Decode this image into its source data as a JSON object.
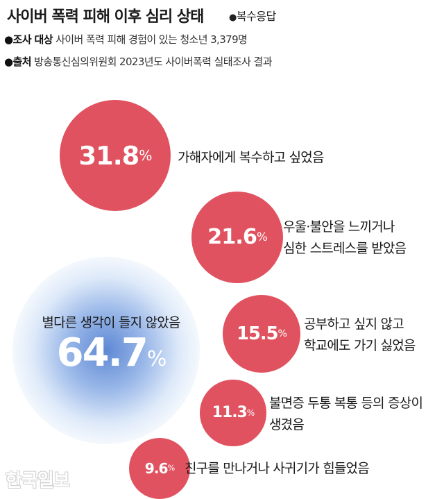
{
  "title": "사이버 폭력 피해 이후 심리 상태",
  "title_note": {
    "bullet": "●",
    "text": "복수응답"
  },
  "meta": {
    "survey_label": "●조사 대상",
    "survey_text": "사이버 폭력 피해 경험이 있는 청소년 3,379명",
    "source_label": "●출처",
    "source_text": "방송통신심의위원회 2023년도 사이버폭력 실태조사 결과"
  },
  "logo_text": "한국일보",
  "chart_data": {
    "type": "bubble",
    "unit": "%",
    "bubble_color": "#e0525f",
    "highlight_color": "#5682d2",
    "items": [
      {
        "label": "가해자에게 복수하고 싶었음",
        "lines": [
          "가해자에게 복수하고 싶었음"
        ],
        "value": 31.8,
        "display": "31.8"
      },
      {
        "label": "우울·불안을 느끼거나 심한 스트레스를 받았음",
        "lines": [
          "우울·불안을 느끼거나",
          "심한 스트레스를 받았음"
        ],
        "value": 21.6,
        "display": "21.6"
      },
      {
        "label": "공부하고 싶지 않고 학교에도 가기 싫었음",
        "lines": [
          "공부하고 싶지 않고",
          "학교에도 가기 싫었음"
        ],
        "value": 15.5,
        "display": "15.5"
      },
      {
        "label": "불면증 두통 복통 등의 증상이 생겼음",
        "lines": [
          "불면증 두통 복통 등의 증상이",
          "생겼음"
        ],
        "value": 11.3,
        "display": "11.3"
      },
      {
        "label": "친구를 만나거나 사귀기가 힘들었음",
        "lines": [
          "친구를 만나거나 사귀기가 힘들었음"
        ],
        "value": 9.6,
        "display": "9.6"
      }
    ],
    "highlight": {
      "label": "별다른 생각이 들지 않았음",
      "value": 64.7,
      "display": "64.7"
    }
  }
}
